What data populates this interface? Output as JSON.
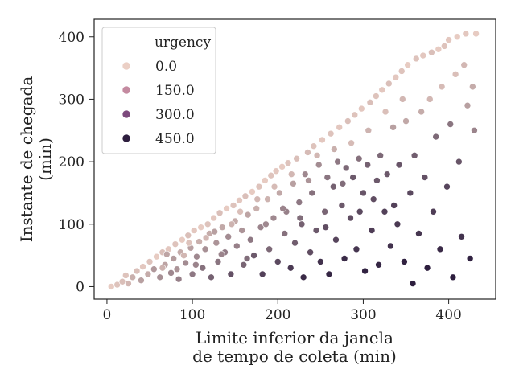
{
  "chart_data": {
    "type": "scatter",
    "title": "",
    "xlabel": "Limite inferior da janela\nde tempo de coleta (min)",
    "ylabel": "Instante de chegada\n(min)",
    "xlim": [
      -15,
      455
    ],
    "ylim": [
      -20,
      428
    ],
    "xticks": [
      "0",
      "100",
      "200",
      "300",
      "400"
    ],
    "yticks": [
      "0",
      "100",
      "200",
      "300",
      "400"
    ],
    "grid": false,
    "legend": {
      "title": "urgency",
      "placement": "top-left",
      "entries": [
        {
          "label": "0.0",
          "color": "#ebcfc5"
        },
        {
          "label": "150.0",
          "color": "#c48aa0"
        },
        {
          "label": "300.0",
          "color": "#7d4a7d"
        },
        {
          "label": "450.0",
          "color": "#2d1e3e"
        }
      ]
    },
    "hue_variable": "urgency",
    "hue_range": [
      0,
      450
    ],
    "colors": {
      "low": "#ebcfc5",
      "high": "#2d1e3e"
    },
    "series": [
      {
        "name": "urgency",
        "points": [
          [
            5,
            0,
            10
          ],
          [
            12,
            3,
            30
          ],
          [
            18,
            8,
            40
          ],
          [
            25,
            5,
            60
          ],
          [
            22,
            18,
            30
          ],
          [
            30,
            15,
            80
          ],
          [
            35,
            25,
            40
          ],
          [
            40,
            10,
            120
          ],
          [
            42,
            32,
            20
          ],
          [
            48,
            20,
            90
          ],
          [
            50,
            40,
            30
          ],
          [
            55,
            28,
            140
          ],
          [
            58,
            48,
            10
          ],
          [
            62,
            15,
            160
          ],
          [
            65,
            55,
            40
          ],
          [
            68,
            35,
            110
          ],
          [
            72,
            60,
            20
          ],
          [
            75,
            22,
            180
          ],
          [
            78,
            45,
            130
          ],
          [
            80,
            68,
            30
          ],
          [
            84,
            12,
            200
          ],
          [
            86,
            55,
            90
          ],
          [
            88,
            75,
            10
          ],
          [
            92,
            38,
            170
          ],
          [
            95,
            82,
            40
          ],
          [
            98,
            62,
            120
          ],
          [
            100,
            20,
            220
          ],
          [
            102,
            90,
            20
          ],
          [
            105,
            48,
            180
          ],
          [
            108,
            72,
            80
          ],
          [
            110,
            95,
            10
          ],
          [
            112,
            30,
            240
          ],
          [
            115,
            60,
            160
          ],
          [
            118,
            100,
            30
          ],
          [
            120,
            85,
            90
          ],
          [
            122,
            15,
            280
          ],
          [
            125,
            110,
            20
          ],
          [
            128,
            70,
            150
          ],
          [
            130,
            40,
            230
          ],
          [
            132,
            118,
            40
          ],
          [
            135,
            95,
            100
          ],
          [
            138,
            55,
            210
          ],
          [
            140,
            125,
            10
          ],
          [
            142,
            80,
            170
          ],
          [
            145,
            20,
            320
          ],
          [
            148,
            130,
            30
          ],
          [
            150,
            105,
            90
          ],
          [
            152,
            65,
            200
          ],
          [
            155,
            138,
            20
          ],
          [
            158,
            90,
            150
          ],
          [
            160,
            35,
            270
          ],
          [
            162,
            145,
            40
          ],
          [
            165,
            115,
            110
          ],
          [
            168,
            75,
            220
          ],
          [
            170,
            152,
            10
          ],
          [
            172,
            50,
            300
          ],
          [
            175,
            125,
            80
          ],
          [
            178,
            160,
            30
          ],
          [
            180,
            95,
            190
          ],
          [
            182,
            20,
            360
          ],
          [
            185,
            170,
            10
          ],
          [
            188,
            140,
            70
          ],
          [
            190,
            60,
            260
          ],
          [
            192,
            178,
            30
          ],
          [
            195,
            110,
            180
          ],
          [
            198,
            185,
            20
          ],
          [
            200,
            40,
            340
          ],
          [
            202,
            150,
            100
          ],
          [
            205,
            192,
            10
          ],
          [
            208,
            85,
            240
          ],
          [
            210,
            120,
            200
          ],
          [
            212,
            198,
            30
          ],
          [
            215,
            30,
            380
          ],
          [
            218,
            165,
            120
          ],
          [
            220,
            70,
            290
          ],
          [
            222,
            205,
            40
          ],
          [
            225,
            135,
            220
          ],
          [
            228,
            100,
            280
          ],
          [
            230,
            15,
            420
          ],
          [
            232,
            180,
            180
          ],
          [
            235,
            215,
            50
          ],
          [
            238,
            55,
            330
          ],
          [
            240,
            150,
            240
          ],
          [
            242,
            225,
            30
          ],
          [
            245,
            90,
            300
          ],
          [
            248,
            195,
            170
          ],
          [
            250,
            40,
            400
          ],
          [
            252,
            235,
            20
          ],
          [
            255,
            120,
            270
          ],
          [
            258,
            175,
            230
          ],
          [
            260,
            20,
            430
          ],
          [
            262,
            245,
            30
          ],
          [
            265,
            160,
            280
          ],
          [
            268,
            75,
            350
          ],
          [
            270,
            200,
            220
          ],
          [
            272,
            255,
            20
          ],
          [
            275,
            130,
            300
          ],
          [
            278,
            45,
            420
          ],
          [
            280,
            190,
            260
          ],
          [
            282,
            265,
            40
          ],
          [
            285,
            110,
            330
          ],
          [
            288,
            175,
            300
          ],
          [
            290,
            275,
            30
          ],
          [
            292,
            60,
            390
          ],
          [
            295,
            205,
            240
          ],
          [
            298,
            285,
            20
          ],
          [
            300,
            150,
            310
          ],
          [
            302,
            25,
            440
          ],
          [
            305,
            195,
            280
          ],
          [
            308,
            295,
            40
          ],
          [
            310,
            90,
            370
          ],
          [
            312,
            140,
            330
          ],
          [
            315,
            305,
            30
          ],
          [
            318,
            35,
            430
          ],
          [
            320,
            210,
            260
          ],
          [
            322,
            315,
            20
          ],
          [
            325,
            120,
            360
          ],
          [
            328,
            180,
            300
          ],
          [
            330,
            325,
            40
          ],
          [
            332,
            65,
            400
          ],
          [
            335,
            255,
            120
          ],
          [
            338,
            335,
            20
          ],
          [
            340,
            100,
            380
          ],
          [
            342,
            195,
            310
          ],
          [
            345,
            345,
            30
          ],
          [
            348,
            40,
            440
          ],
          [
            350,
            265,
            100
          ],
          [
            352,
            355,
            10
          ],
          [
            355,
            150,
            340
          ],
          [
            358,
            5,
            450
          ],
          [
            360,
            210,
            290
          ],
          [
            362,
            365,
            30
          ],
          [
            365,
            85,
            390
          ],
          [
            368,
            280,
            90
          ],
          [
            370,
            370,
            20
          ],
          [
            372,
            175,
            320
          ],
          [
            375,
            30,
            450
          ],
          [
            378,
            300,
            60
          ],
          [
            380,
            375,
            40
          ],
          [
            382,
            120,
            370
          ],
          [
            385,
            240,
            260
          ],
          [
            388,
            380,
            10
          ],
          [
            390,
            60,
            420
          ],
          [
            392,
            320,
            50
          ],
          [
            395,
            385,
            30
          ],
          [
            398,
            160,
            350
          ],
          [
            400,
            395,
            20
          ],
          [
            402,
            260,
            230
          ],
          [
            405,
            15,
            450
          ],
          [
            408,
            340,
            40
          ],
          [
            410,
            400,
            10
          ],
          [
            412,
            200,
            310
          ],
          [
            415,
            80,
            400
          ],
          [
            418,
            355,
            60
          ],
          [
            420,
            405,
            20
          ],
          [
            422,
            290,
            120
          ],
          [
            425,
            45,
            440
          ],
          [
            428,
            320,
            90
          ],
          [
            430,
            250,
            190
          ],
          [
            432,
            405,
            10
          ],
          [
            65,
            30,
            70
          ],
          [
            70,
            52,
            110
          ],
          [
            82,
            28,
            150
          ],
          [
            90,
            50,
            60
          ],
          [
            96,
            70,
            30
          ],
          [
            104,
            35,
            190
          ],
          [
            116,
            78,
            60
          ],
          [
            126,
            88,
            120
          ],
          [
            134,
            52,
            190
          ],
          [
            146,
            100,
            70
          ],
          [
            156,
            120,
            40
          ],
          [
            164,
            45,
            250
          ],
          [
            176,
            140,
            60
          ],
          [
            186,
            100,
            180
          ],
          [
            196,
            160,
            50
          ],
          [
            206,
            125,
            190
          ],
          [
            216,
            180,
            60
          ],
          [
            226,
            110,
            250
          ],
          [
            236,
            170,
            150
          ],
          [
            246,
            210,
            60
          ],
          [
            256,
            95,
            330
          ],
          [
            266,
            220,
            80
          ],
          [
            276,
            165,
            250
          ],
          [
            286,
            230,
            50
          ],
          [
            296,
            120,
            340
          ],
          [
            306,
            250,
            70
          ],
          [
            316,
            170,
            300
          ],
          [
            326,
            280,
            40
          ],
          [
            336,
            130,
            360
          ],
          [
            346,
            300,
            60
          ]
        ]
      }
    ]
  }
}
